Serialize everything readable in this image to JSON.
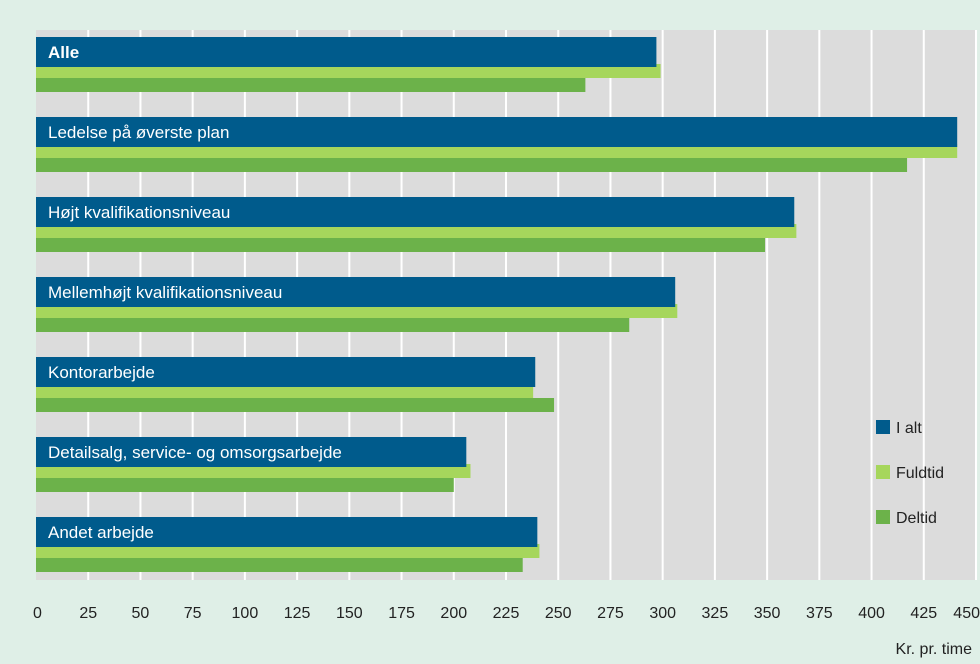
{
  "colors": {
    "page_bg": "#dfefe7",
    "plot_bg": "#dcdcdc",
    "grid": "#ffffff",
    "i_alt": "#005b8c",
    "fuldtid": "#a6d65c",
    "deltid": "#6cb24a"
  },
  "chart_data": {
    "type": "bar",
    "orientation": "horizontal",
    "categories": [
      "Alle",
      "Ledelse på øverste plan",
      "Højt kvalifikationsniveau",
      "Mellemhøjt kvalifikationsniveau",
      "Kontorarbejde",
      "Detailsalg, service- og omsorgsarbejde",
      "Andet arbejde"
    ],
    "series": [
      {
        "name": "I alt",
        "values": [
          297,
          441,
          363,
          306,
          239,
          206,
          240
        ]
      },
      {
        "name": "Fuldtid",
        "values": [
          299,
          441,
          364,
          307,
          238,
          208,
          241
        ]
      },
      {
        "name": "Deltid",
        "values": [
          263,
          417,
          349,
          284,
          248,
          200,
          233
        ]
      }
    ],
    "xlim": [
      0,
      450
    ],
    "xticks": [
      0,
      25,
      50,
      75,
      100,
      125,
      150,
      175,
      200,
      225,
      250,
      275,
      300,
      325,
      350,
      375,
      400,
      425,
      450
    ],
    "xlabel": "Kr. pr. time",
    "grid": true,
    "legend_position": "right"
  }
}
